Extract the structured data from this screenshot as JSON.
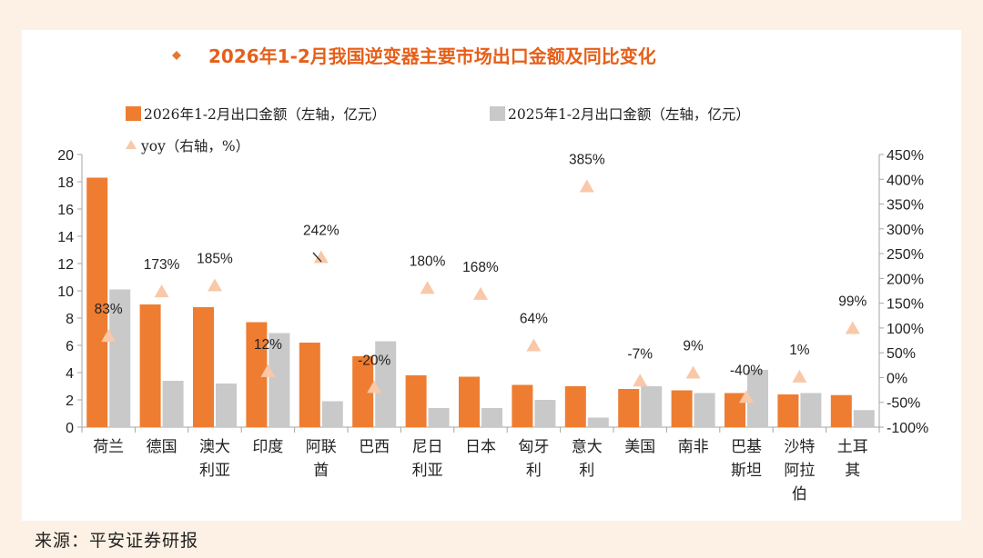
{
  "source": "来源：平安证券研报",
  "colors": {
    "bar_2026": "#ee7d31",
    "bar_2025": "#c9c9c9",
    "yoy": "#f8c8a8",
    "title": "#e65f1a",
    "title_diamond": "#e9772d",
    "panel": "#ffffff",
    "background": "#fcf1e4",
    "axis": "#a6a6a6"
  },
  "chart_data": {
    "type": "bar",
    "title": "2026年1-2月我国逆变器主要市场出口金额及同比变化",
    "categories": [
      "荷兰",
      "德国",
      "澳大\n利亚",
      "印度",
      "阿联\n酋",
      "巴西",
      "尼日\n利亚",
      "日本",
      "匈牙\n利",
      "意大\n利",
      "美国",
      "南非",
      "巴基\n斯坦",
      "沙特\n阿拉\n伯",
      "土耳\n其"
    ],
    "series": [
      {
        "name": "2026年1-2月出口金额（左轴，亿元）",
        "axis": "left",
        "values": [
          18.3,
          9.0,
          8.8,
          7.7,
          6.2,
          5.2,
          3.8,
          3.7,
          3.1,
          3.0,
          2.8,
          2.7,
          2.5,
          2.4,
          2.35
        ]
      },
      {
        "name": "2025年1-2月出口金额（左轴，亿元）",
        "axis": "left",
        "values": [
          10.1,
          3.4,
          3.2,
          6.9,
          1.9,
          6.3,
          1.4,
          1.4,
          2.0,
          0.7,
          3.0,
          2.5,
          4.2,
          2.5,
          1.25
        ]
      },
      {
        "name": "yoy（右轴，%）",
        "axis": "right",
        "values": [
          83,
          173,
          185,
          12,
          242,
          -20,
          180,
          168,
          64,
          385,
          -7,
          9,
          -40,
          1,
          99
        ]
      }
    ],
    "yoy_labels": [
      "83%",
      "173%",
      "185%",
      "12%",
      "242%",
      "-20%",
      "180%",
      "168%",
      "64%",
      "385%",
      "-7%",
      "9%",
      "-40%",
      "1%",
      "99%"
    ],
    "left_axis": {
      "min": 0,
      "max": 20,
      "step": 2,
      "ticks": [
        "0",
        "2",
        "4",
        "6",
        "8",
        "10",
        "12",
        "14",
        "16",
        "18",
        "20"
      ]
    },
    "right_axis": {
      "min": -100,
      "max": 450,
      "step": 50,
      "ticks": [
        "-100%",
        "-50%",
        "0%",
        "50%",
        "100%",
        "150%",
        "200%",
        "250%",
        "300%",
        "350%",
        "400%",
        "450%"
      ]
    },
    "legend_position": "top",
    "grid": false
  }
}
